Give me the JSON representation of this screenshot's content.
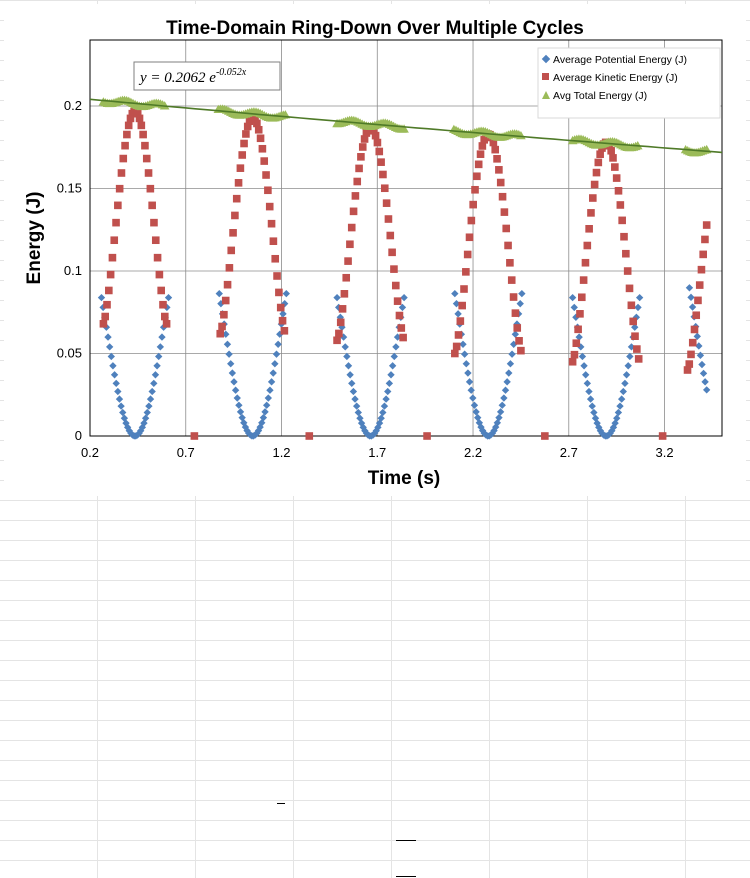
{
  "chart_data": {
    "type": "scatter",
    "title": "Time-Domain Ring-Down Over Multiple Cycles",
    "xlabel": "Time (s)",
    "ylabel": "Energy (J)",
    "xlim": [
      0.2,
      3.5
    ],
    "ylim": [
      0,
      0.24
    ],
    "x_ticks": [
      0.2,
      0.7,
      1.2,
      1.7,
      2.2,
      2.7,
      3.2
    ],
    "y_ticks": [
      0,
      0.05,
      0.1,
      0.15,
      0.2
    ],
    "y_tick_labels": [
      "0",
      "0.05",
      "0.1",
      "0.15",
      "0.2"
    ],
    "grid": true,
    "legend_position": "top-right",
    "period": 0.615,
    "series": [
      {
        "name": "Average Potential Energy (J)",
        "marker": "diamond",
        "color": "#4f81bd",
        "cycles": [
          {
            "t_start": 0.26,
            "t_end": 0.61,
            "t_min": 0.435,
            "amp": 0.138
          },
          {
            "t_start": 0.875,
            "t_end": 1.225,
            "t_min": 1.05,
            "amp": 0.142
          },
          {
            "t_start": 1.49,
            "t_end": 1.84,
            "t_min": 1.665,
            "amp": 0.138
          },
          {
            "t_start": 2.105,
            "t_end": 2.455,
            "t_min": 2.28,
            "amp": 0.142
          },
          {
            "t_start": 2.72,
            "t_end": 3.07,
            "t_min": 2.895,
            "amp": 0.138
          },
          {
            "t_start": 3.33,
            "t_end": 3.42,
            "t_min": 3.51,
            "amp": 0.142
          }
        ]
      },
      {
        "name": "Average Kinetic Energy (J)",
        "marker": "square",
        "color": "#c0504d",
        "cycles": [
          {
            "t_start": 0.27,
            "t_end": 0.6,
            "t_peak": 0.435,
            "peak": 0.197,
            "edge": 0.068
          },
          {
            "t_start": 0.88,
            "t_end": 1.215,
            "t_peak": 1.05,
            "peak": 0.193,
            "edge": 0.062
          },
          {
            "t_start": 1.49,
            "t_end": 1.835,
            "t_peak": 1.665,
            "peak": 0.187,
            "edge": 0.058
          },
          {
            "t_start": 2.105,
            "t_end": 2.45,
            "t_peak": 2.28,
            "peak": 0.183,
            "edge": 0.05
          },
          {
            "t_start": 2.72,
            "t_end": 3.065,
            "t_peak": 2.895,
            "peak": 0.178,
            "edge": 0.045
          },
          {
            "t_start": 3.32,
            "t_end": 3.42,
            "t_peak": 3.51,
            "peak": 0.175,
            "edge": 0.04
          }
        ],
        "zero_points_x": [
          0.745,
          1.345,
          1.96,
          2.575,
          3.19
        ]
      },
      {
        "name": "Avg Total Energy (J)",
        "marker": "triangle",
        "color": "#9bbb59",
        "cycles": [
          {
            "t_start": 0.27,
            "t_end": 0.59
          },
          {
            "t_start": 0.87,
            "t_end": 1.22
          },
          {
            "t_start": 1.49,
            "t_end": 1.84
          },
          {
            "t_start": 2.1,
            "t_end": 2.45
          },
          {
            "t_start": 2.72,
            "t_end": 3.06
          },
          {
            "t_start": 3.31,
            "t_end": 3.42
          }
        ],
        "model_a": 0.2062,
        "model_b": -0.052
      }
    ],
    "trendline": {
      "type": "exponential",
      "equation_lhs": "y = 0.2062 e",
      "equation_exp": "-0.052x",
      "x_range": [
        0.2,
        3.5
      ],
      "color": "#4f7a28"
    }
  }
}
